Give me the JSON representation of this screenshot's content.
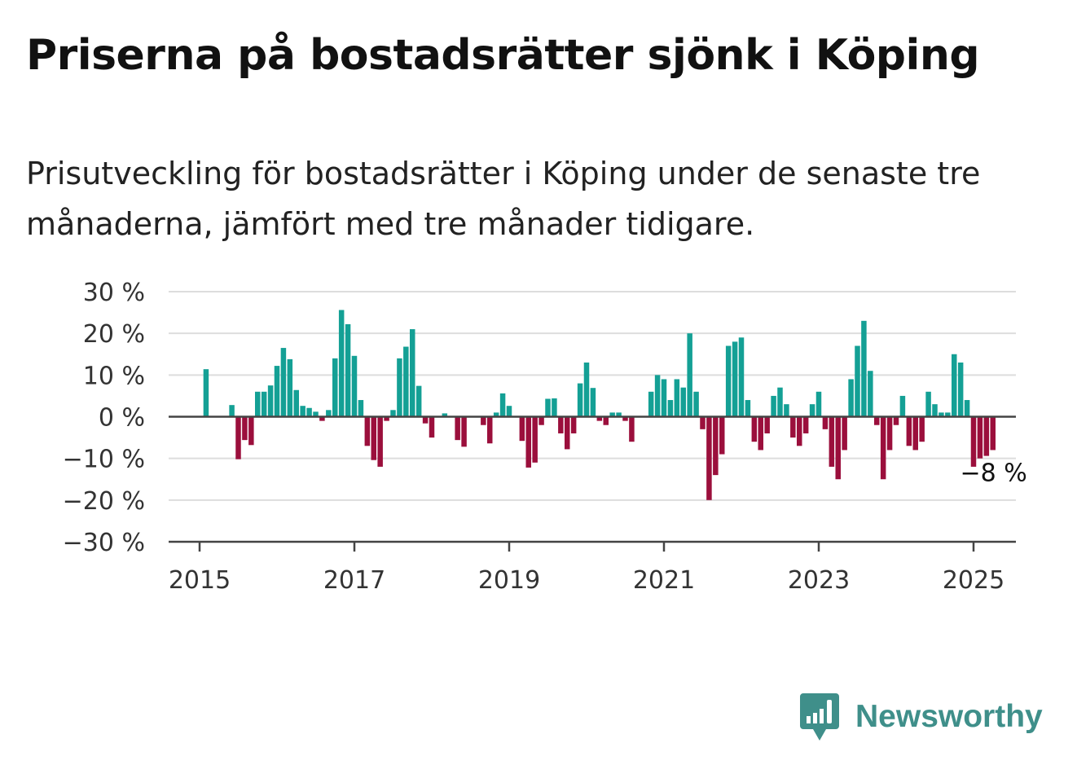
{
  "header": {
    "title": "Priserna på bostadsrätter sjönk i Köping",
    "subtitle": "Prisutveckling för bostadsrätter i Köping under de senaste tre månaderna, jämfört med tre månader tidigare."
  },
  "brand": {
    "name": "Newsworthy",
    "icon": "newsworthy-logo-icon",
    "color": "#3f8f8a"
  },
  "chart_data": {
    "type": "bar",
    "title": "Priserna på bostadsrätter sjönk i Köping",
    "ylabel": "",
    "xlabel": "",
    "ylim": [
      -30,
      30
    ],
    "yticks": [
      30,
      20,
      10,
      0,
      -10,
      -20,
      -30
    ],
    "ytick_labels": [
      "30 %",
      "20 %",
      "10 %",
      "0 %",
      "−10 %",
      "−20 %",
      "−30 %"
    ],
    "xticks": [
      2015,
      2017,
      2019,
      2021,
      2023,
      2025
    ],
    "xtick_labels": [
      "2015",
      "2017",
      "2019",
      "2021",
      "2023",
      "2025"
    ],
    "x_start": "2015-02",
    "frequency": "monthly",
    "grid": true,
    "colors": {
      "positive": "#14a095",
      "negative": "#9b0f3c",
      "grid": "#dddddd",
      "axis": "#444444"
    },
    "annotation": {
      "label": "−8 %",
      "value": -8
    },
    "values": [
      11.4,
      0,
      0,
      0,
      2.8,
      -10.2,
      -5.6,
      -6.8,
      6,
      6,
      7.5,
      12.2,
      16.5,
      13.8,
      6.4,
      2.6,
      2.1,
      1.2,
      -1,
      1.6,
      14,
      25.6,
      22.2,
      14.6,
      4,
      -7,
      -10.4,
      -12,
      -1,
      1.6,
      14,
      16.8,
      21,
      7.4,
      -1.6,
      -5,
      0,
      0.8,
      0,
      -5.6,
      -7.2,
      0,
      0,
      -2,
      -6.4,
      1,
      5.6,
      2.6,
      0,
      -5.8,
      -12.2,
      -11,
      -2,
      4.3,
      4.4,
      -4,
      -7.8,
      -4,
      8,
      13,
      6.9,
      -1,
      -2,
      1,
      1,
      -1,
      -6,
      0,
      0,
      6,
      10,
      9,
      4,
      9,
      7,
      20,
      6,
      -3,
      -20,
      -14,
      -9,
      17,
      18,
      19,
      4,
      -6,
      -8,
      -4,
      5,
      7,
      3,
      -5,
      -7,
      -4,
      3,
      6,
      -3,
      -12,
      -15,
      -8,
      9,
      17,
      23,
      11,
      -2,
      -15,
      -8,
      -2,
      5,
      -7,
      -8,
      -6,
      6,
      3,
      1,
      1,
      15,
      13,
      4,
      -12,
      -10,
      -9.4,
      -8
    ]
  }
}
